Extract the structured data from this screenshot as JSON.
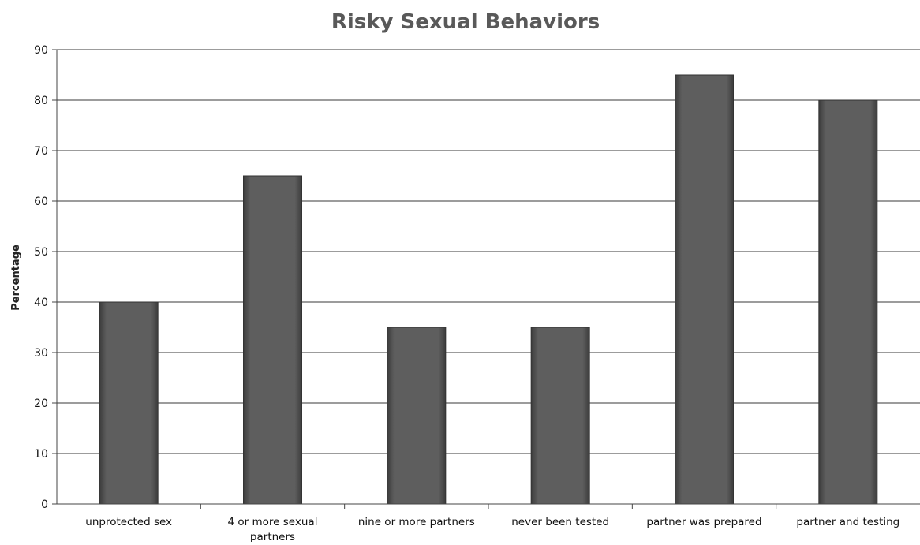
{
  "chart_data": {
    "type": "bar",
    "title": "Risky Sexual Behaviors",
    "xlabel": "",
    "ylabel": "Percentage",
    "categories": [
      [
        "unprotected sex"
      ],
      [
        "4 or more sexual",
        "partners"
      ],
      [
        "nine or more partners"
      ],
      [
        "never been tested"
      ],
      [
        "partner was prepared"
      ],
      [
        "partner and testing"
      ]
    ],
    "values": [
      40,
      65,
      35,
      35,
      85,
      80
    ],
    "ylim": [
      0,
      90
    ],
    "yticks": [
      0,
      10,
      20,
      30,
      40,
      50,
      60,
      70,
      80,
      90
    ],
    "grid": true,
    "legend": "none",
    "bar_color": "#5a5a5a"
  }
}
